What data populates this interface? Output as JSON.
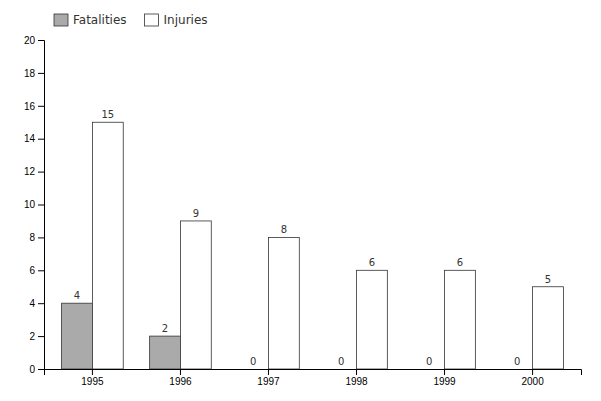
{
  "chart_data": {
    "type": "bar",
    "categories": [
      "1995",
      "1996",
      "1997",
      "1998",
      "1999",
      "2000"
    ],
    "series": [
      {
        "name": "Fatalities",
        "color": "#aaaaaa",
        "values": [
          4,
          2,
          0,
          0,
          0,
          0
        ]
      },
      {
        "name": "Injuries",
        "color": "#ffffff",
        "values": [
          15,
          9,
          8,
          6,
          6,
          5
        ]
      }
    ],
    "ylim": [
      0,
      20
    ],
    "yticks": [
      0,
      2,
      4,
      6,
      8,
      10,
      12,
      14,
      16,
      18,
      20
    ],
    "grid": false,
    "legend": "top-left",
    "data_labels": true
  }
}
